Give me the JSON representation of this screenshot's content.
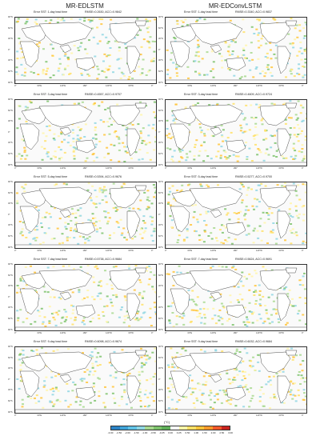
{
  "columns": [
    "MR-EDLSTM",
    "MR-EDConvLSTM"
  ],
  "panels": [
    {
      "left": {
        "lead": "Error SST: 1-day lead time",
        "stats": "RMSE=0.2630,  ACC=0.9842"
      },
      "right": {
        "lead": "Error SST: 1-day lead time",
        "stats": "RMSE=0.3340,  ACC=0.9837"
      }
    },
    {
      "left": {
        "lead": "Error SST: 3-day lead time",
        "stats": "RMSE=0.4557,  ACC=0.9707"
      },
      "right": {
        "lead": "Error SST: 3-day lead time",
        "stats": "RMSE=0.4609,  ACC=0.9724"
      }
    },
    {
      "left": {
        "lead": "Error SST: 5-day lead time",
        "stats": "RMSE=0.5394,  ACC=0.9676"
      },
      "right": {
        "lead": "Error SST: 5-day lead time",
        "stats": "RMSE=0.5277,  ACC=0.9700"
      }
    },
    {
      "left": {
        "lead": "Error SST: 7-day lead time",
        "stats": "RMSE=0.5738,  ACC=0.9684"
      },
      "right": {
        "lead": "Error SST: 7-day lead time",
        "stats": "RMSE=0.5624,  ACC=0.9691"
      }
    },
    {
      "left": {
        "lead": "Error SST: 9-day lead time",
        "stats": "RMSE=0.6098,  ACC=0.9674"
      },
      "right": {
        "lead": "Error SST: 9-day lead time",
        "stats": "RMSE=0.6032,  ACC=0.9684"
      }
    }
  ],
  "lat_labels": [
    "90°N",
    "60°N",
    "30°N",
    "0°",
    "30°S",
    "60°S",
    "90°S"
  ],
  "lon_labels": [
    "0°",
    "60°E",
    "120°E",
    "180°",
    "120°W",
    "60°W",
    "0°"
  ],
  "colorbar": {
    "unit": "(°C)",
    "ticks": [
      "-3.00",
      "-2.50",
      "-2.00",
      "-1.50",
      "-1.00",
      "-0.50",
      "-0.25",
      "0.00",
      "0.25",
      "0.50",
      "1.00",
      "1.50",
      "2.00",
      "2.50",
      "3.00"
    ],
    "colors": [
      "#2b83c6",
      "#3fa3d8",
      "#61c3e6",
      "#8fd6e3",
      "#a7d88e",
      "#7cc26b",
      "#5eae57",
      "#ffffff",
      "#fff5a8",
      "#ffe066",
      "#ffc43a",
      "#ff9a2a",
      "#f2582a",
      "#c9241f"
    ]
  }
}
